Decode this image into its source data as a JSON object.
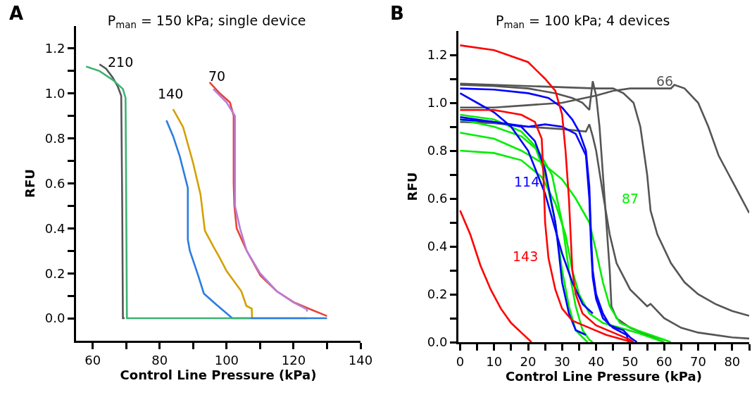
{
  "chart_data": [
    {
      "type": "line",
      "title": "P$_{man}$ = 150 kPa; single device",
      "xlabel": "Control Line Pressure (kPa)",
      "ylabel": "RFU",
      "grid": false,
      "line_style": "solid",
      "xlim": [
        55,
        140
      ],
      "xticks": [
        60,
        {
          "value": 70,
          "label": null
        },
        80,
        {
          "value": 90,
          "label": null
        },
        100,
        {
          "value": 110,
          "label": null
        },
        120,
        {
          "value": 130,
          "label": null
        },
        140
      ],
      "ylim": [
        -0.1,
        1.3
      ],
      "yticks": [
        {
          "value": 0,
          "label": "0.0"
        },
        {
          "value": 0.1,
          "label": null
        },
        0.2,
        {
          "value": 0.3,
          "label": null
        },
        0.4,
        {
          "value": 0.5,
          "label": null
        },
        0.6,
        {
          "value": 0.7,
          "label": null
        },
        0.8,
        {
          "value": 0.9,
          "label": null
        },
        {
          "value": 1,
          "label": "1.0"
        },
        {
          "value": 1.1,
          "label": null
        },
        1.2
      ],
      "annotations": [
        "A",
        "210",
        "140",
        "70"
      ],
      "series": [
        {
          "color": "#555555",
          "x": [
            62,
            64,
            66,
            67.5,
            68.5,
            68.8,
            69,
            69.5
          ],
          "values": [
            1.13,
            1.11,
            1.07,
            1.03,
            0.99,
            0.5,
            0,
            0
          ]
        },
        {
          "color": "#d4a000",
          "x": [
            84,
            87,
            90,
            92.2,
            93.5,
            96,
            97.9,
            100,
            104.4,
            105.9,
            107.5,
            107.6,
            124
          ],
          "values": [
            0.93,
            0.85,
            0.69,
            0.55,
            0.39,
            0.32,
            0.27,
            0.21,
            0.12,
            0.055,
            0.043,
            0,
            0
          ]
        },
        {
          "color": "#2a7de1",
          "x": [
            82,
            84,
            86,
            88.4,
            88.4,
            89,
            91.5,
            93.2,
            97,
            101.7,
            130
          ],
          "values": [
            0.88,
            0.81,
            0.72,
            0.58,
            0.35,
            0.3,
            0.19,
            0.11,
            0.06,
            0,
            0
          ]
        },
        {
          "color": "#3cb371",
          "x": [
            58,
            62,
            66,
            69,
            69.8,
            70,
            70.2,
            107
          ],
          "values": [
            1.12,
            1.1,
            1.06,
            1.02,
            0.98,
            0.5,
            0,
            0
          ]
        },
        {
          "color": "#e8443a",
          "x": [
            94.9,
            98,
            101,
            102.1,
            102.1,
            102.3,
            103,
            106,
            110.1,
            115,
            120,
            125,
            130
          ],
          "values": [
            1.05,
            1.0,
            0.96,
            0.9,
            0.6,
            0.5,
            0.4,
            0.3,
            0.19,
            0.12,
            0.072,
            0.04,
            0.01
          ]
        },
        {
          "color": "#b57edc",
          "x": [
            96,
            100,
            102.5,
            102.5,
            104,
            106,
            110,
            115,
            120,
            124,
            124
          ],
          "values": [
            1.02,
            0.96,
            0.9,
            0.5,
            0.4,
            0.3,
            0.2,
            0.12,
            0.07,
            0.04,
            0.03
          ]
        }
      ]
    },
    {
      "type": "line",
      "title": "P$_{man}$ = 100 kPa; 4 devices",
      "xlabel": "Control Line Pressure (kPa)",
      "ylabel": "RFU",
      "grid": false,
      "line_style": "solid",
      "xlim": [
        -0.5,
        85
      ],
      "xticks": [
        0,
        {
          "value": 5,
          "label": null
        },
        10,
        {
          "value": 15,
          "label": null
        },
        20,
        {
          "value": 25,
          "label": null
        },
        30,
        {
          "value": 35,
          "label": null
        },
        40,
        {
          "value": 45,
          "label": null
        },
        50,
        {
          "value": 55,
          "label": null
        },
        60,
        {
          "value": 65,
          "label": null
        },
        70,
        {
          "value": 75,
          "label": null
        },
        80,
        {
          "value": 85,
          "label": null
        }
      ],
      "ylim": [
        0,
        1.3
      ],
      "yticks": [
        {
          "value": 0,
          "label": "0.0"
        },
        {
          "value": 0.1,
          "label": null
        },
        0.2,
        {
          "value": 0.3,
          "label": null
        },
        0.4,
        {
          "value": 0.5,
          "label": null
        },
        0.6,
        {
          "value": 0.7,
          "label": null
        },
        0.8,
        {
          "value": 0.9,
          "label": null
        },
        {
          "value": 1,
          "label": "1.0"
        },
        {
          "value": 1.1,
          "label": null
        },
        1.2
      ],
      "annotations": [
        "B",
        "114",
        "87",
        "143",
        "66"
      ],
      "series": [
        {
          "color": "#555555",
          "x": [
            0,
            10,
            20,
            30,
            40,
            45,
            48,
            51,
            53,
            55,
            56,
            58,
            62,
            66,
            70,
            75,
            80,
            85
          ],
          "values": [
            1.08,
            1.075,
            1.07,
            1.065,
            1.06,
            1.06,
            1.04,
            1.0,
            0.9,
            0.7,
            0.55,
            0.45,
            0.33,
            0.25,
            0.2,
            0.16,
            0.13,
            0.11
          ]
        },
        {
          "color": "#555555",
          "x": [
            0,
            10,
            20,
            30,
            40,
            45,
            50,
            62,
            63,
            66,
            70,
            73,
            76,
            79,
            82,
            85
          ],
          "values": [
            0.98,
            0.98,
            0.99,
            1.0,
            1.03,
            1.05,
            1.06,
            1.06,
            1.075,
            1.06,
            1.0,
            0.9,
            0.78,
            0.7,
            0.62,
            0.54
          ]
        },
        {
          "color": "#555555",
          "x": [
            0,
            10,
            20,
            28,
            33,
            36,
            38,
            39,
            40,
            41,
            42,
            43,
            44,
            44.5,
            46,
            50,
            55,
            60
          ],
          "values": [
            1.075,
            1.07,
            1.06,
            1.04,
            1.02,
            1.0,
            0.97,
            1.09,
            1.03,
            0.9,
            0.7,
            0.5,
            0.3,
            0.15,
            0.1,
            0.06,
            0.03,
            0
          ]
        },
        {
          "color": "#555555",
          "x": [
            0,
            10,
            20,
            30,
            37,
            38,
            39,
            40,
            42,
            44,
            46,
            50,
            55,
            56,
            60,
            65,
            70,
            80,
            85
          ],
          "values": [
            0.92,
            0.915,
            0.9,
            0.89,
            0.88,
            0.91,
            0.86,
            0.8,
            0.62,
            0.45,
            0.33,
            0.22,
            0.15,
            0.16,
            0.1,
            0.06,
            0.04,
            0.02,
            0.015
          ]
        },
        {
          "color": "#00ee00",
          "x": [
            0,
            10,
            18,
            22,
            25,
            28,
            30,
            32,
            34,
            36,
            37.5
          ],
          "values": [
            0.95,
            0.93,
            0.88,
            0.82,
            0.7,
            0.5,
            0.3,
            0.15,
            0.05,
            0.02,
            0
          ]
        },
        {
          "color": "#00ee00",
          "x": [
            0,
            10,
            18,
            23,
            27,
            30,
            32,
            34,
            36,
            38,
            39
          ],
          "values": [
            0.93,
            0.9,
            0.86,
            0.8,
            0.7,
            0.5,
            0.3,
            0.15,
            0.05,
            0.01,
            0
          ]
        },
        {
          "color": "#00ee00",
          "x": [
            0,
            10,
            18,
            24,
            30,
            34,
            38,
            40,
            42,
            44,
            47,
            52,
            56,
            60,
            62
          ],
          "values": [
            0.875,
            0.85,
            0.8,
            0.75,
            0.68,
            0.6,
            0.5,
            0.38,
            0.25,
            0.15,
            0.08,
            0.05,
            0.03,
            0.01,
            0
          ]
        },
        {
          "color": "#00ee00",
          "x": [
            0,
            10,
            18,
            24,
            28,
            31,
            33,
            35,
            38,
            42,
            47,
            52,
            58,
            60
          ],
          "values": [
            0.8,
            0.79,
            0.76,
            0.69,
            0.58,
            0.45,
            0.3,
            0.2,
            0.12,
            0.08,
            0.06,
            0.04,
            0.01,
            0
          ]
        },
        {
          "color": "#0000ff",
          "x": [
            0,
            10,
            20,
            26,
            30,
            33,
            35,
            37,
            38,
            38.5,
            39,
            40,
            42,
            44,
            48,
            50,
            52
          ],
          "values": [
            1.06,
            1.055,
            1.04,
            1.02,
            0.98,
            0.93,
            0.88,
            0.8,
            0.65,
            0.45,
            0.3,
            0.2,
            0.12,
            0.07,
            0.05,
            0.02,
            0
          ]
        },
        {
          "color": "#0000ff",
          "x": [
            0,
            5,
            10,
            15,
            20,
            25,
            28,
            30,
            33,
            36,
            39
          ],
          "values": [
            1.04,
            1.0,
            0.96,
            0.9,
            0.8,
            0.62,
            0.47,
            0.37,
            0.25,
            0.16,
            0.12
          ]
        },
        {
          "color": "#0000ff",
          "x": [
            0,
            10,
            18,
            22,
            25,
            28,
            29,
            30,
            32,
            34,
            37
          ],
          "values": [
            0.93,
            0.92,
            0.9,
            0.84,
            0.72,
            0.5,
            0.38,
            0.25,
            0.12,
            0.05,
            0.03
          ]
        },
        {
          "color": "#0000ff",
          "x": [
            0,
            10,
            20,
            25,
            30,
            34,
            37,
            38,
            38.5,
            39,
            40,
            42,
            45,
            49,
            49.5
          ],
          "values": [
            0.94,
            0.92,
            0.9,
            0.91,
            0.9,
            0.87,
            0.78,
            0.6,
            0.4,
            0.27,
            0.18,
            0.1,
            0.06,
            0.03,
            0
          ]
        },
        {
          "color": "#ff0000",
          "x": [
            0,
            10,
            20,
            25,
            28,
            30,
            31,
            32,
            33,
            34,
            36,
            40,
            45,
            50,
            51
          ],
          "values": [
            1.24,
            1.22,
            1.17,
            1.1,
            1.05,
            0.95,
            0.8,
            0.6,
            0.3,
            0.2,
            0.12,
            0.07,
            0.04,
            0.01,
            0
          ]
        },
        {
          "color": "#ff0000",
          "x": [
            0,
            10,
            18,
            22,
            24,
            24.5,
            25,
            26,
            28,
            30,
            33,
            38,
            43,
            48,
            51
          ],
          "values": [
            0.97,
            0.97,
            0.95,
            0.92,
            0.85,
            0.7,
            0.5,
            0.35,
            0.22,
            0.14,
            0.09,
            0.06,
            0.03,
            0.01,
            0
          ]
        },
        {
          "color": "#ff0000",
          "x": [
            0,
            3,
            6,
            9,
            12,
            15,
            18,
            21
          ],
          "values": [
            0.55,
            0.45,
            0.32,
            0.22,
            0.14,
            0.08,
            0.04,
            0
          ]
        }
      ]
    }
  ]
}
